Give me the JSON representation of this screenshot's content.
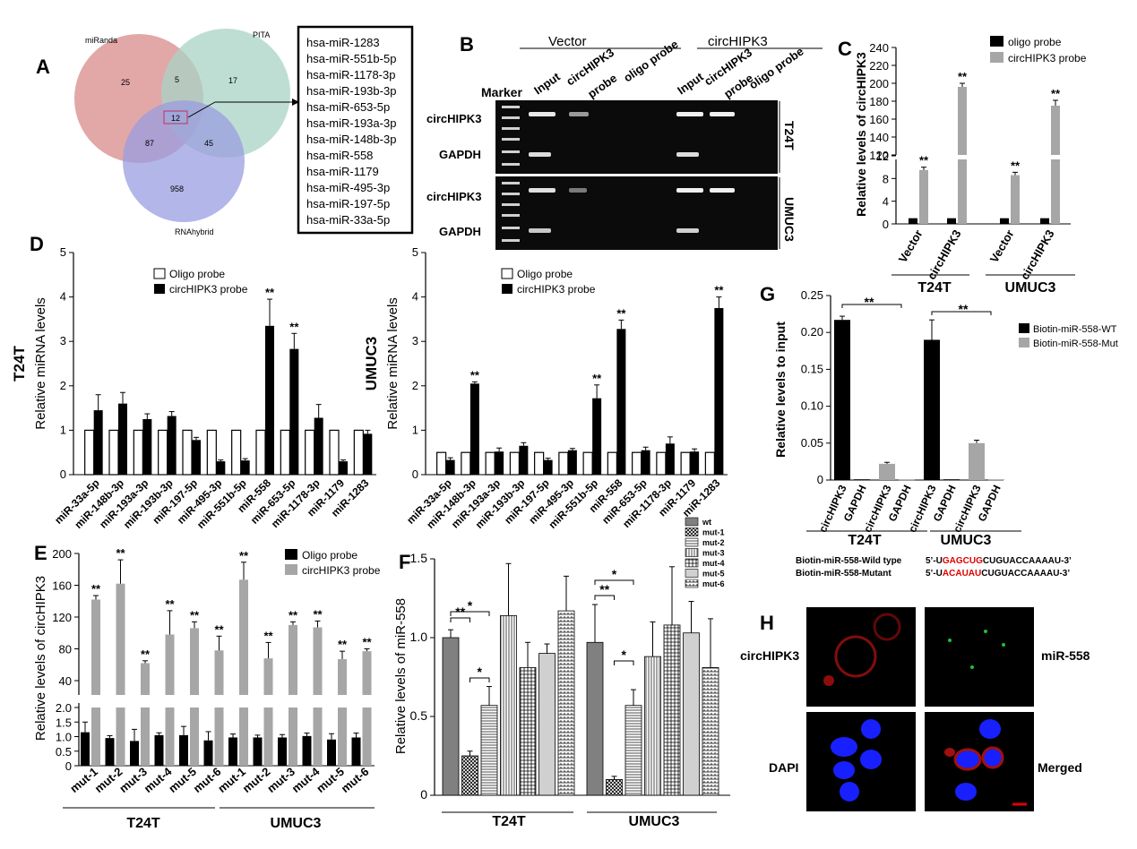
{
  "panel_labels": {
    "A": "A",
    "B": "B",
    "C": "C",
    "D": "D",
    "E": "E",
    "F": "F",
    "G": "G",
    "H": "H"
  },
  "venn": {
    "sets": [
      "miRanda",
      "PITA",
      "RNAhybrid"
    ],
    "regions": {
      "miRanda_only": "25",
      "PITA_only": "17",
      "RNAhybrid_only": "958",
      "miRanda_PITA": "5",
      "miRanda_RNAhybrid": "87",
      "PITA_RNAhybrid": "45",
      "all_three": "12"
    },
    "colors": {
      "miRanda": "#d88a8a",
      "PITA": "#a8d3c6",
      "RNAhybrid": "#9a9ee0"
    },
    "common_mirnas": [
      "hsa-miR-1283",
      "hsa-miR-551b-5p",
      "hsa-miR-1178-3p",
      "hsa-miR-193b-3p",
      "hsa-miR-653-5p",
      "hsa-miR-193a-3p",
      "hsa-miR-148b-3p",
      "hsa-miR-558",
      "hsa-miR-1179",
      "hsa-miR-495-3p",
      "hsa-miR-197-5p",
      "hsa-miR-33a-5p"
    ]
  },
  "gel": {
    "group_vector": "Vector",
    "group_circ": "circHIPK3",
    "marker": "Marker",
    "lanes": [
      "Input",
      "circHIPK3",
      "probe",
      "oligo probe",
      "Input",
      "circHIPK3",
      "probe",
      "oligo probe"
    ],
    "rows": [
      "circHIPK3",
      "GAPDH",
      "circHIPK3",
      "GAPDH"
    ],
    "cells": [
      "T24T",
      "UMUC3"
    ]
  },
  "chart_data": [
    {
      "id": "C",
      "type": "bar",
      "categories": [
        "Vector",
        "circHIPK3",
        "Vector",
        "circHIPK3"
      ],
      "groups": [
        "T24T",
        "UMUC3"
      ],
      "series": [
        {
          "name": "oligo probe",
          "values": [
            1,
            1,
            1,
            1
          ],
          "color": "#000000"
        },
        {
          "name": "circHIPK3 probe",
          "values": [
            9.5,
            196,
            8.6,
            175
          ],
          "color": "#a6a6a6"
        }
      ],
      "errors": [
        [
          0.1,
          0.1,
          0.1,
          0.1
        ],
        [
          0.5,
          4,
          0.5,
          6
        ]
      ],
      "ylabel": "Relative levels of circHIPK3",
      "yticks_low": [
        "0",
        "4",
        "8",
        "12"
      ],
      "yticks_high": [
        "120",
        "140",
        "160",
        "180",
        "200",
        "220",
        "240"
      ],
      "sig": "**"
    },
    {
      "id": "D1",
      "type": "bar",
      "cell": "T24T",
      "categories": [
        "miR-33a-5p",
        "miR-148b-3p",
        "miR-193a-3p",
        "miR-193b-3p",
        "miR-197-5p",
        "miR-495-3p",
        "miR-551b-5p",
        "miR-558",
        "miR-653-5p",
        "miR-1178-3p",
        "miR-1179",
        "miR-1283"
      ],
      "series": [
        {
          "name": "Oligo probe",
          "values": [
            1,
            1,
            1,
            1,
            1,
            1,
            1,
            1,
            1,
            1,
            1,
            1
          ]
        },
        {
          "name": "circHIPK3 probe",
          "values": [
            1.45,
            1.6,
            1.25,
            1.32,
            0.78,
            0.3,
            0.32,
            3.35,
            2.83,
            1.28,
            0.3,
            0.92
          ]
        }
      ],
      "errors": [
        0.35,
        0.25,
        0.12,
        0.1,
        0.06,
        0.03,
        0.04,
        0.6,
        0.35,
        0.3,
        0.03,
        0.08
      ],
      "sig_indices": [
        7,
        8
      ],
      "ylabel": "Relative miRNA levels",
      "ylim": [
        0,
        5
      ],
      "yticks": [
        "0",
        "1",
        "2",
        "3",
        "4",
        "5"
      ]
    },
    {
      "id": "D2",
      "type": "bar",
      "cell": "UMUC3",
      "categories": [
        "miR-33a-5p",
        "miR-148b-3p",
        "miR-193a-3p",
        "miR-193b-3p",
        "miR-197-5p",
        "miR-495-3p",
        "miR-551b-5p",
        "miR-558",
        "miR-653-5p",
        "miR-1178-3p",
        "miR-1179",
        "miR-1283"
      ],
      "series": [
        {
          "name": "Oligo probe",
          "values": [
            0.5,
            0.5,
            0.5,
            0.5,
            0.5,
            0.5,
            0.5,
            0.5,
            0.5,
            0.5,
            0.5,
            0.5
          ]
        },
        {
          "name": "circHIPK3 probe",
          "values": [
            0.33,
            2.05,
            0.52,
            0.65,
            0.33,
            0.55,
            1.72,
            3.28,
            0.55,
            0.7,
            0.52,
            3.75
          ]
        }
      ],
      "errors": [
        0.05,
        0.04,
        0.08,
        0.07,
        0.04,
        0.04,
        0.3,
        0.2,
        0.07,
        0.15,
        0.06,
        0.25
      ],
      "sig_indices": [
        1,
        6,
        7,
        11
      ],
      "ylabel": "Relative miRNA levels",
      "ylim": [
        0,
        5
      ],
      "yticks": [
        "0",
        "1",
        "2",
        "3",
        "4",
        "5"
      ]
    },
    {
      "id": "E",
      "type": "bar",
      "categories": [
        "mut-1",
        "mut-2",
        "mut-3",
        "mut-4",
        "mut-5",
        "mut-6",
        "mut-1",
        "mut-2",
        "mut-3",
        "mut-4",
        "mut-5",
        "mut-6"
      ],
      "groups": [
        "T24T",
        "UMUC3"
      ],
      "series": [
        {
          "name": "Oligo probe",
          "values": [
            1.15,
            0.95,
            0.85,
            1.05,
            1.05,
            0.87,
            0.97,
            0.97,
            0.97,
            1.02,
            0.9,
            0.97
          ],
          "color": "#000000"
        },
        {
          "name": "circHIPK3 probe",
          "values": [
            142,
            162,
            62,
            98,
            106,
            78,
            167,
            68,
            110,
            107,
            67,
            77
          ],
          "color": "#a6a6a6"
        }
      ],
      "errors": [
        [
          0.35,
          0.08,
          0.4,
          0.08,
          0.3,
          0.3,
          0.12,
          0.08,
          0.1,
          0.1,
          0.2,
          0.15
        ],
        [
          5,
          30,
          3,
          30,
          8,
          18,
          22,
          20,
          4,
          8,
          10,
          3
        ]
      ],
      "ylabel": "Relative levels of circHIPK3",
      "yticks_low": [
        "0",
        "0.5",
        "1.0",
        "1.5",
        "2.0"
      ],
      "yticks_high": [
        "40",
        "80",
        "120",
        "160",
        "200"
      ],
      "sig": "**"
    },
    {
      "id": "F",
      "type": "bar",
      "groups": [
        "T24T",
        "UMUC3"
      ],
      "series_names": [
        "wt",
        "mut-1",
        "mut-2",
        "mut-3",
        "mut-4",
        "mut-5",
        "mut-6"
      ],
      "values": [
        [
          1.0,
          0.25,
          0.57,
          1.14,
          0.81,
          0.9,
          1.17
        ],
        [
          0.97,
          0.1,
          0.57,
          0.88,
          1.08,
          1.03,
          0.81
        ]
      ],
      "errors": [
        [
          0.05,
          0.03,
          0.12,
          0.33,
          0.16,
          0.06,
          0.22
        ],
        [
          0.24,
          0.02,
          0.1,
          0.22,
          0.37,
          0.2,
          0.31
        ]
      ],
      "ylabel": "Relative levels of miR-558",
      "ylim": [
        0,
        1.5
      ],
      "yticks": [
        "0",
        "0.5",
        "1.0",
        "1.5"
      ],
      "significance": [
        {
          "a": 0,
          "b": 1,
          "label": "**"
        },
        {
          "a": 0,
          "b": 2,
          "label": "*"
        },
        {
          "a": 1,
          "b": 2,
          "label": "*"
        }
      ]
    },
    {
      "id": "G",
      "type": "bar",
      "categories": [
        "circHIPK3",
        "GAPDH",
        "circHIPK3",
        "GAPDH",
        "circHIPK3",
        "GAPDH",
        "circHIPK3",
        "GAPDH"
      ],
      "groups": [
        "T24T",
        "UMUC3"
      ],
      "series": [
        {
          "name": "Biotin-miR-558-WT",
          "values": [
            0.217,
            0.001,
            null,
            null,
            0.19,
            0.001,
            null,
            null
          ],
          "color": "#000000"
        },
        {
          "name": "Biotin-miR-558-Mut",
          "values": [
            null,
            null,
            0.022,
            0.001,
            null,
            null,
            0.05,
            0.001
          ],
          "color": "#a6a6a6"
        }
      ],
      "errors": [
        0.005,
        0,
        0.002,
        0,
        0.027,
        0,
        0.004,
        0
      ],
      "ylabel": "Relative levels to input",
      "ylim": [
        0,
        0.25
      ],
      "yticks": [
        "0",
        "0.05",
        "0.10",
        "0.15",
        "0.20",
        "0.25"
      ],
      "sig": "**"
    }
  ],
  "sequences": {
    "wt_label": "Biotin-miR-558-Wild type",
    "wt_prefix": "5’-U",
    "wt_red": "GAGCUG",
    "wt_suffix": "CUGUACCAAAAU-3’",
    "mut_label": "Biotin-miR-558-Mutant",
    "mut_prefix": "5’-U",
    "mut_red": "ACAUAU",
    "mut_suffix": "CUGUACCAAAAU-3’"
  },
  "fish": {
    "labels": [
      "circHIPK3",
      "miR-558",
      "DAPI",
      "Merged"
    ]
  }
}
